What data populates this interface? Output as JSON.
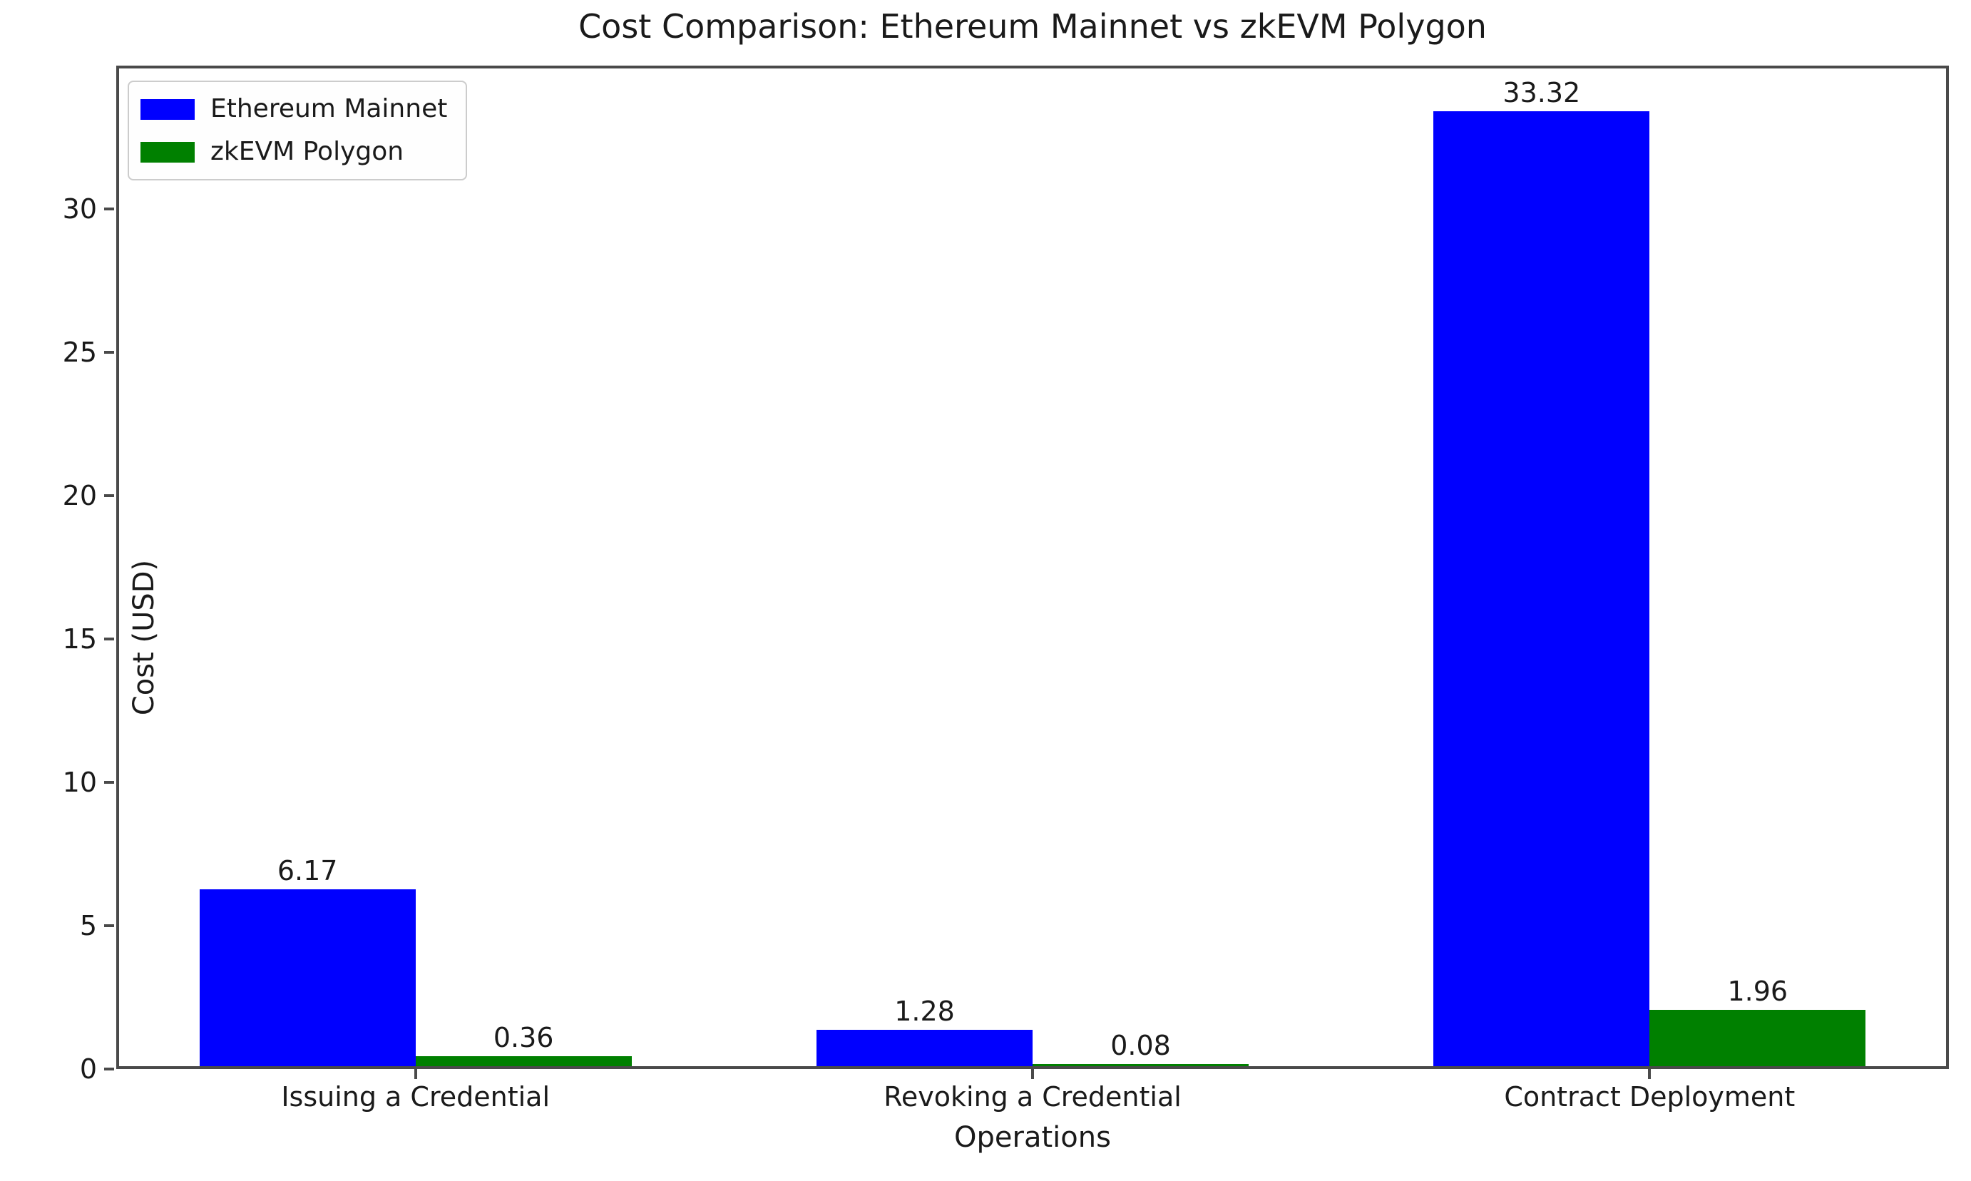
{
  "chart_data": {
    "type": "bar",
    "title": "Cost Comparison: Ethereum Mainnet vs zkEVM Polygon",
    "xlabel": "Operations",
    "ylabel": "Cost (USD)",
    "categories": [
      "Issuing a Credential",
      "Revoking a Credential",
      "Contract Deployment"
    ],
    "series": [
      {
        "name": "Ethereum Mainnet",
        "color": "#0000ff",
        "values": [
          6.17,
          1.28,
          33.32
        ],
        "value_labels": [
          "6.17",
          "1.28",
          "33.32"
        ]
      },
      {
        "name": "zkEVM Polygon",
        "color": "#008000",
        "values": [
          0.36,
          0.08,
          1.96
        ],
        "value_labels": [
          "0.36",
          "0.08",
          "1.96"
        ]
      }
    ],
    "ylim": [
      0,
      35
    ],
    "yticks": [
      0,
      5,
      10,
      15,
      20,
      25,
      30
    ],
    "xlim": [
      -0.485,
      2.485
    ],
    "bar_width": 0.35,
    "legend_position": "upper left",
    "grid": false,
    "background_color": "#ffffff",
    "spine_color": "#4a4a4a",
    "text_color": "#1a1a1a"
  }
}
